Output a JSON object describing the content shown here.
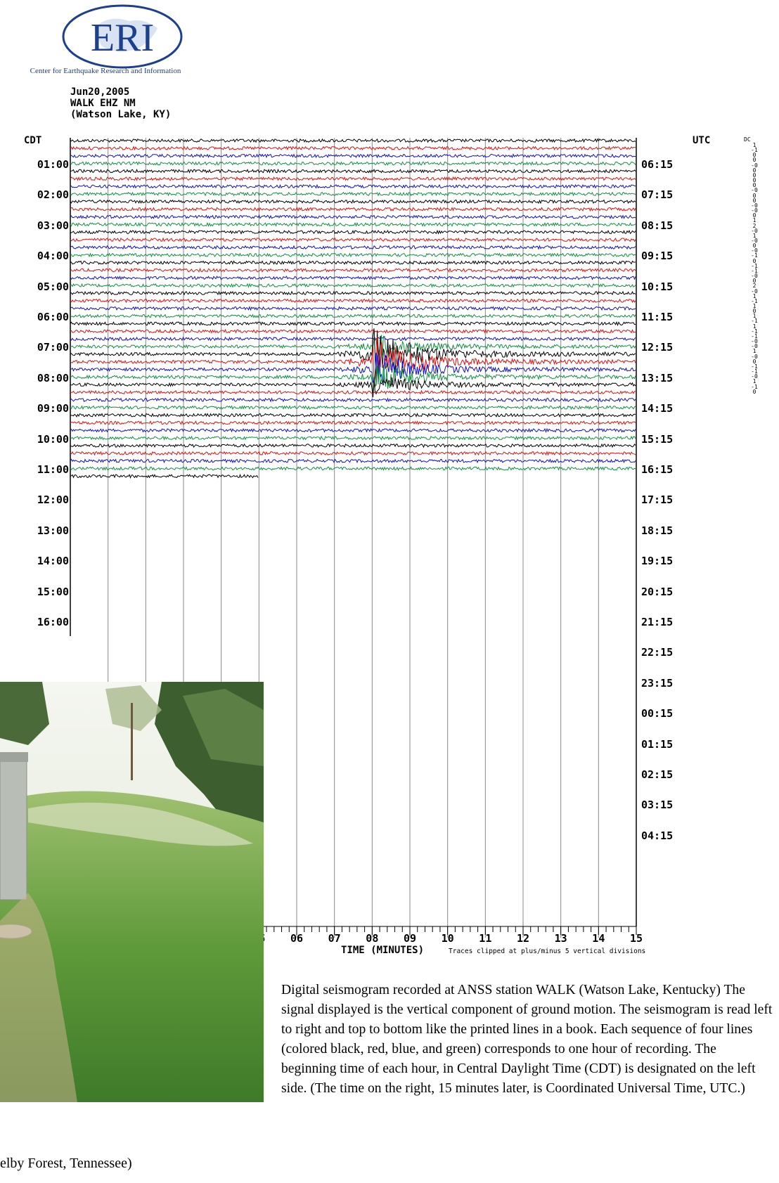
{
  "logo": {
    "letters": "ERI",
    "subtitle": "Center for Earthquake Research and Information"
  },
  "header": {
    "date": "Jun20,2005",
    "station": "WALK EHZ NM",
    "location": "(Watson Lake, KY)"
  },
  "labels": {
    "left_zone": "CDT",
    "right_zone": "UTC",
    "dc": "DC"
  },
  "dc_offsets": [
    "1",
    "-1",
    "0",
    "0",
    "-0",
    "0",
    "0",
    "0",
    "0",
    "-0",
    "0",
    "0",
    "-0",
    "-0",
    "0",
    "1",
    "2",
    "-0",
    "1",
    "-0",
    "0",
    "-0",
    "-1",
    "0",
    "-1",
    "-1",
    "-0",
    "0",
    "2",
    "-0",
    "1",
    "-1",
    "1",
    "0",
    "1",
    "-1",
    "1",
    "-1",
    "-1",
    "-0",
    "-0",
    "1",
    "-0",
    "0",
    "-1",
    "-1",
    "-0",
    "1",
    "-1",
    "0"
  ],
  "chart_data": {
    "type": "seismogram",
    "rows_per_hour": 4,
    "row_colors": [
      "#000000",
      "#e01010",
      "#1010c8",
      "#109040"
    ],
    "recorded_rows": 45,
    "last_row_end_minute": 5,
    "event": {
      "start_minute": 7,
      "strongest_minute": 8,
      "rows": [
        27,
        28,
        29,
        30,
        31,
        32
      ]
    },
    "left_times": [
      "01:00",
      "02:00",
      "03:00",
      "04:00",
      "05:00",
      "06:00",
      "07:00",
      "08:00",
      "09:00",
      "10:00",
      "11:00",
      "12:00",
      "13:00",
      "14:00",
      "15:00",
      "16:00"
    ],
    "right_times": [
      "06:15",
      "07:15",
      "08:15",
      "09:15",
      "10:15",
      "11:15",
      "12:15",
      "13:15",
      "14:15",
      "15:15",
      "16:15",
      "17:15",
      "18:15",
      "19:15",
      "20:15",
      "21:15",
      "22:15",
      "23:15",
      "00:15",
      "01:15",
      "02:15",
      "03:15",
      "04:15"
    ],
    "x_ticks": [
      "05",
      "06",
      "07",
      "08",
      "09",
      "10",
      "11",
      "12",
      "13",
      "14",
      "15"
    ],
    "xlabel": "TIME (MINUTES)",
    "note": "Traces clipped at plus/minus 5 vertical divisions"
  },
  "photo": {
    "caption": "elby Forest, Tennessee)"
  },
  "caption": "Digital seismogram recorded at ANSS station WALK (Watson Lake, Kentucky) The signal displayed is the vertical component of ground motion. The seismogram is read left to right and top to bottom like the printed lines in a book. Each sequence of four lines (colored black, red, blue, and green) corresponds to one hour of recording. The beginning time of each hour, in Central Daylight Time (CDT) is designated on the left side. (The time on the right, 15 minutes later, is Coordinated Universal Time, UTC.)"
}
